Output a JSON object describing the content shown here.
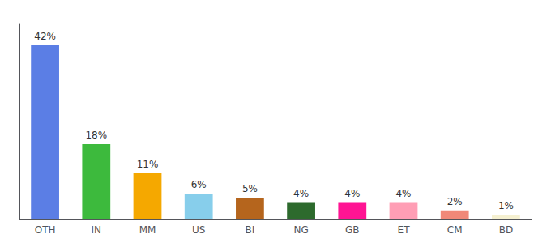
{
  "chart_data": {
    "type": "bar",
    "categories": [
      "OTH",
      "IN",
      "MM",
      "US",
      "BI",
      "NG",
      "GB",
      "ET",
      "CM",
      "BD"
    ],
    "values": [
      42,
      18,
      11,
      6,
      5,
      4,
      4,
      4,
      2,
      1
    ],
    "value_labels": [
      "42%",
      "18%",
      "11%",
      "6%",
      "5%",
      "4%",
      "4%",
      "4%",
      "2%",
      "1%"
    ],
    "colors": [
      "#5b7ee5",
      "#3dba3d",
      "#f5a800",
      "#87ceeb",
      "#b5651d",
      "#2d6a2d",
      "#ff1493",
      "#ff9eb5",
      "#f08878",
      "#f5f0d0"
    ],
    "ylim": [
      0,
      47
    ],
    "grid": false,
    "data_labels": true,
    "tick_labels": "x"
  }
}
